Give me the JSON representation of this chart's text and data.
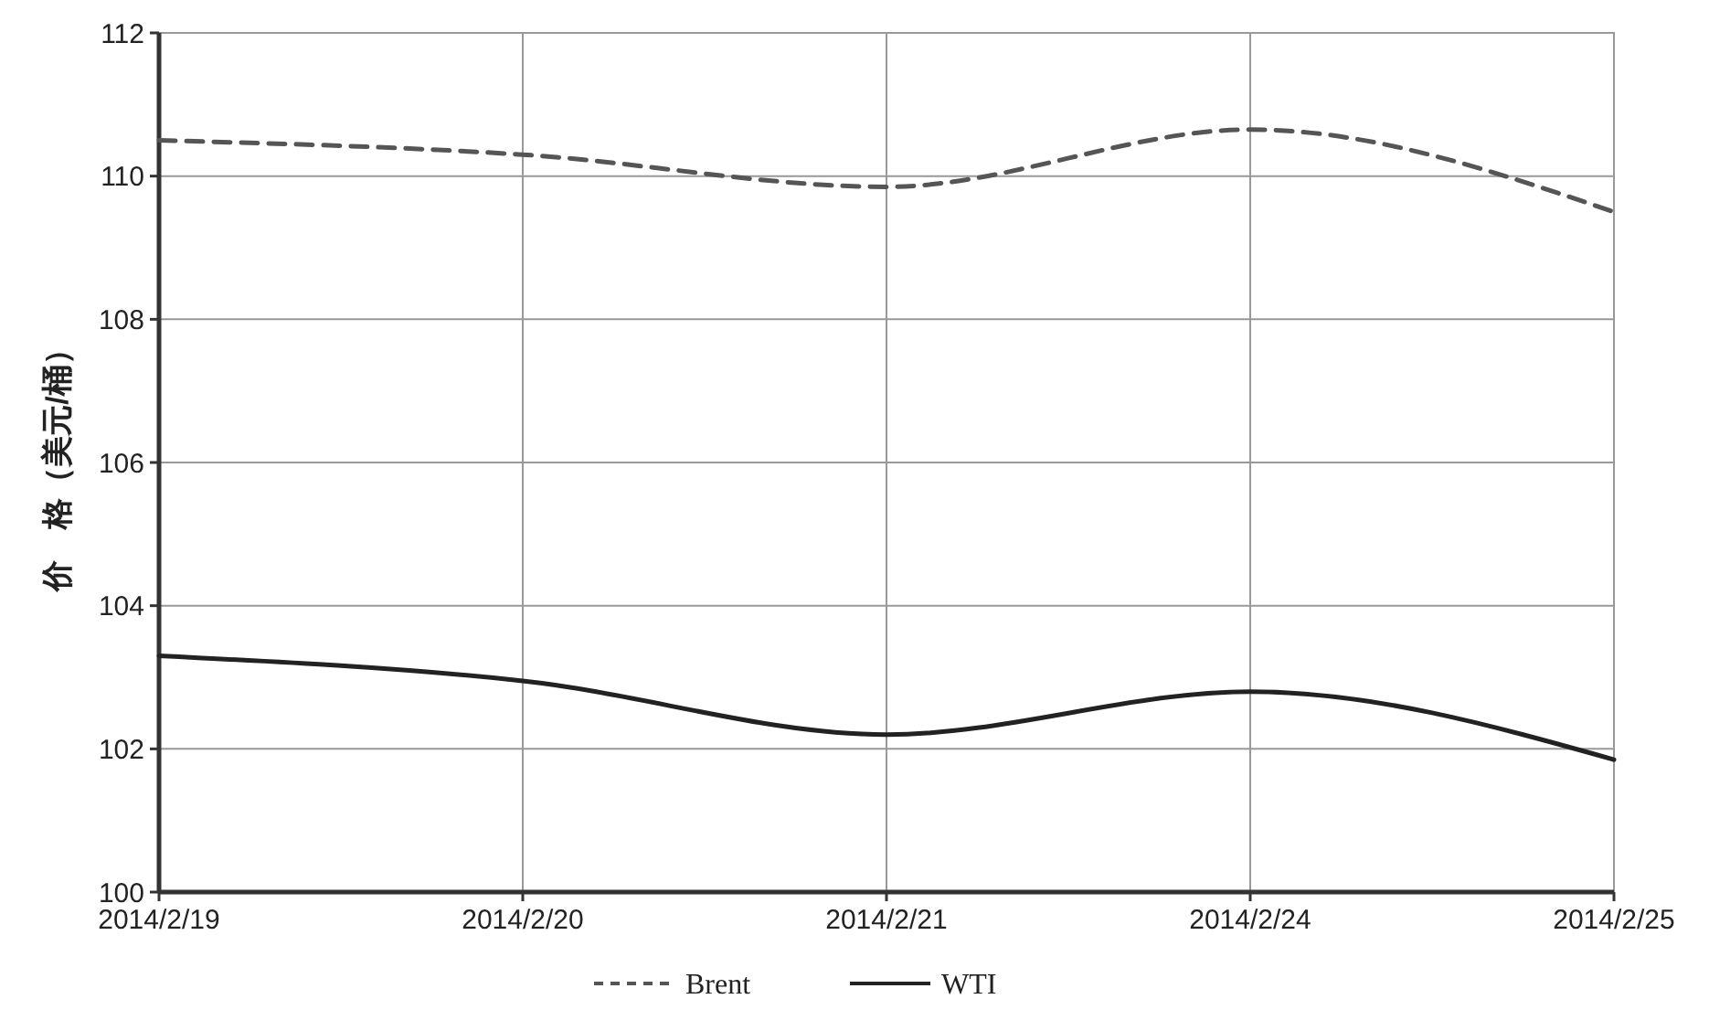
{
  "chart_data": {
    "type": "line",
    "ylabel": "价　格（美元/桶）",
    "categories": [
      "2014/2/19",
      "2014/2/20",
      "2014/2/21",
      "2014/2/24",
      "2014/2/25"
    ],
    "series": [
      {
        "name": "Brent",
        "color": "#555555",
        "line_style": "dashed",
        "values": [
          110.5,
          110.3,
          109.85,
          110.65,
          109.5
        ]
      },
      {
        "name": "WTI",
        "color": "#222222",
        "line_style": "solid",
        "values": [
          103.3,
          102.95,
          102.2,
          102.8,
          101.85
        ]
      }
    ],
    "ylim": [
      100,
      112
    ],
    "yticks": [
      100,
      102,
      104,
      106,
      108,
      110,
      112
    ],
    "grid": true,
    "legend": "bottom",
    "marker": "none"
  }
}
